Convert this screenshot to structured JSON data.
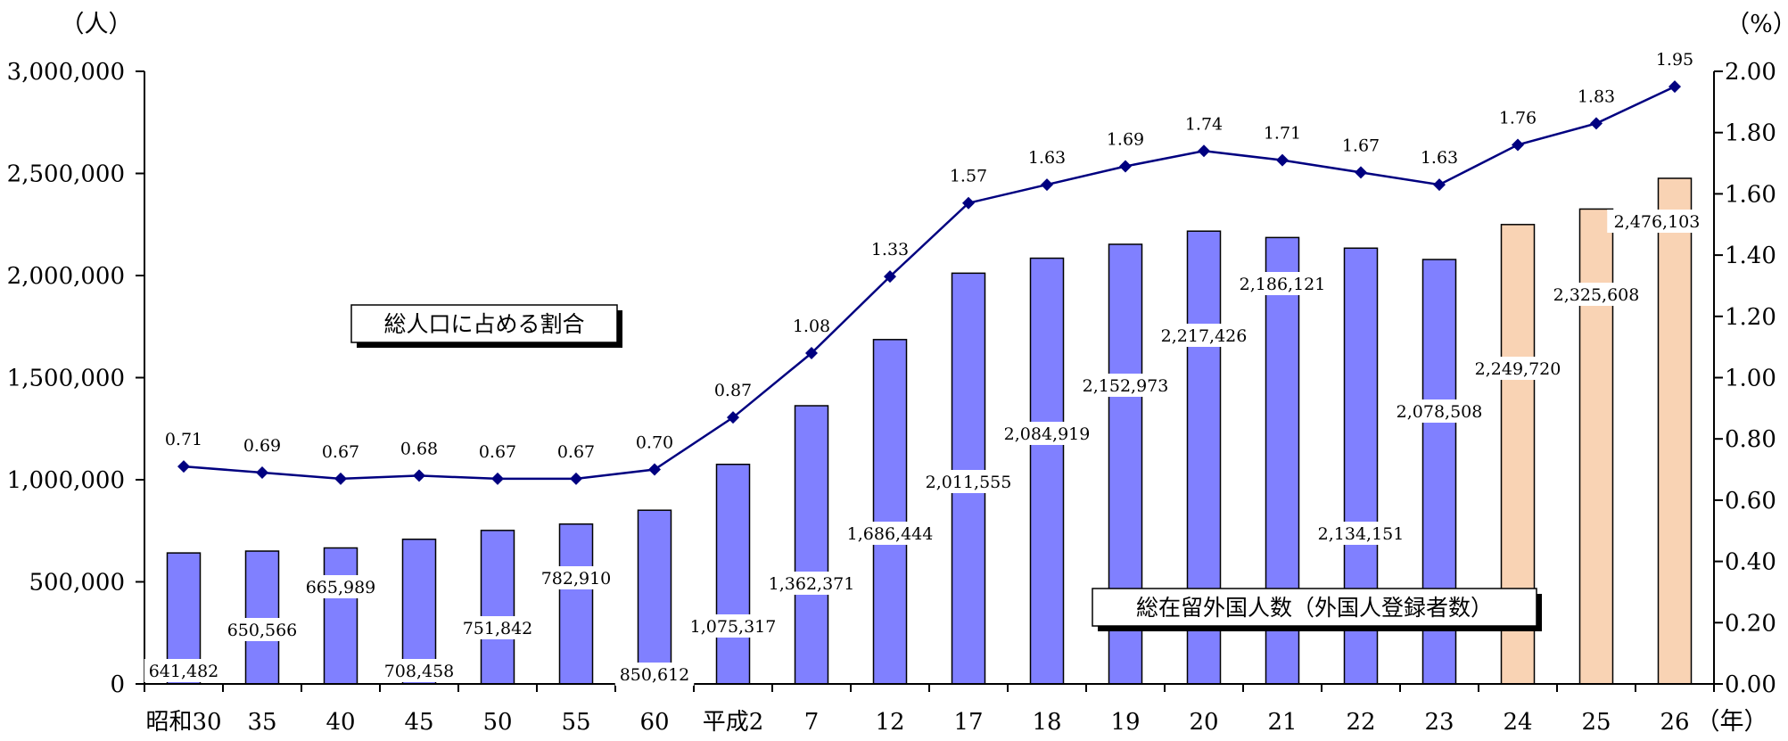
{
  "chart_data": {
    "type": "bar+line",
    "categories": [
      "昭和30",
      "35",
      "40",
      "45",
      "50",
      "55",
      "60",
      "平成2",
      "7",
      "12",
      "17",
      "18",
      "19",
      "20",
      "21",
      "22",
      "23",
      "24",
      "25",
      "26"
    ],
    "series": [
      {
        "values": [
          641482,
          650566,
          665989,
          708458,
          751842,
          782910,
          850612,
          1075317,
          1362371,
          1686444,
          2011555,
          2084919,
          2152973,
          2217426,
          2186121,
          2134151,
          2078508,
          2249720,
          2325608,
          2476103
        ],
        "labels": [
          "641,482",
          "650,566",
          "665,989",
          "708,458",
          "751,842",
          "782,910",
          "850,612",
          "1,075,317",
          "1,362,371",
          "1,686,444",
          "2,011,555",
          "2,084,919",
          "2,152,973",
          "2,217,426",
          "2,186,121",
          "2,134,151",
          "2,078,508",
          "2,249,720",
          "2,325,608",
          "2,476,103"
        ],
        "axis": "left",
        "color_registered": "#8080ff",
        "color_resident": "#f9d3b4",
        "resident_from_index": 17
      },
      {
        "values": [
          0.71,
          0.69,
          0.67,
          0.68,
          0.67,
          0.67,
          0.7,
          0.87,
          1.08,
          1.33,
          1.57,
          1.63,
          1.69,
          1.74,
          1.71,
          1.67,
          1.63,
          1.76,
          1.83,
          1.95
        ],
        "labels": [
          "0.71",
          "0.69",
          "0.67",
          "0.68",
          "0.67",
          "0.67",
          "0.70",
          "0.87",
          "1.08",
          "1.33",
          "1.57",
          "1.63",
          "1.69",
          "1.74",
          "1.71",
          "1.67",
          "1.63",
          "1.76",
          "1.83",
          "1.95"
        ],
        "axis": "right",
        "color": "#000080"
      }
    ],
    "y_left": {
      "unit": "（人）",
      "ylim": [
        0,
        3000000
      ],
      "ticks": [
        0,
        500000,
        1000000,
        1500000,
        2000000,
        2500000,
        3000000
      ],
      "tick_labels": [
        "0",
        "500,000",
        "1,000,000",
        "1,500,000",
        "2,000,000",
        "2,500,000",
        "3,000,000"
      ]
    },
    "y_right": {
      "unit": "（%）",
      "ylim": [
        0,
        2.0
      ],
      "ticks": [
        0,
        0.2,
        0.4,
        0.6,
        0.8,
        1.0,
        1.2,
        1.4,
        1.6,
        1.8,
        2.0
      ],
      "tick_labels": [
        "0.00",
        "0.20",
        "0.40",
        "0.60",
        "0.80",
        "1.00",
        "1.20",
        "1.40",
        "1.60",
        "1.80",
        "2.00"
      ]
    },
    "x_unit": "（年）",
    "callouts": {
      "line": "総人口に占める割合",
      "bars": "総在留外国人数（外国人登録者数）"
    },
    "grid": false
  }
}
